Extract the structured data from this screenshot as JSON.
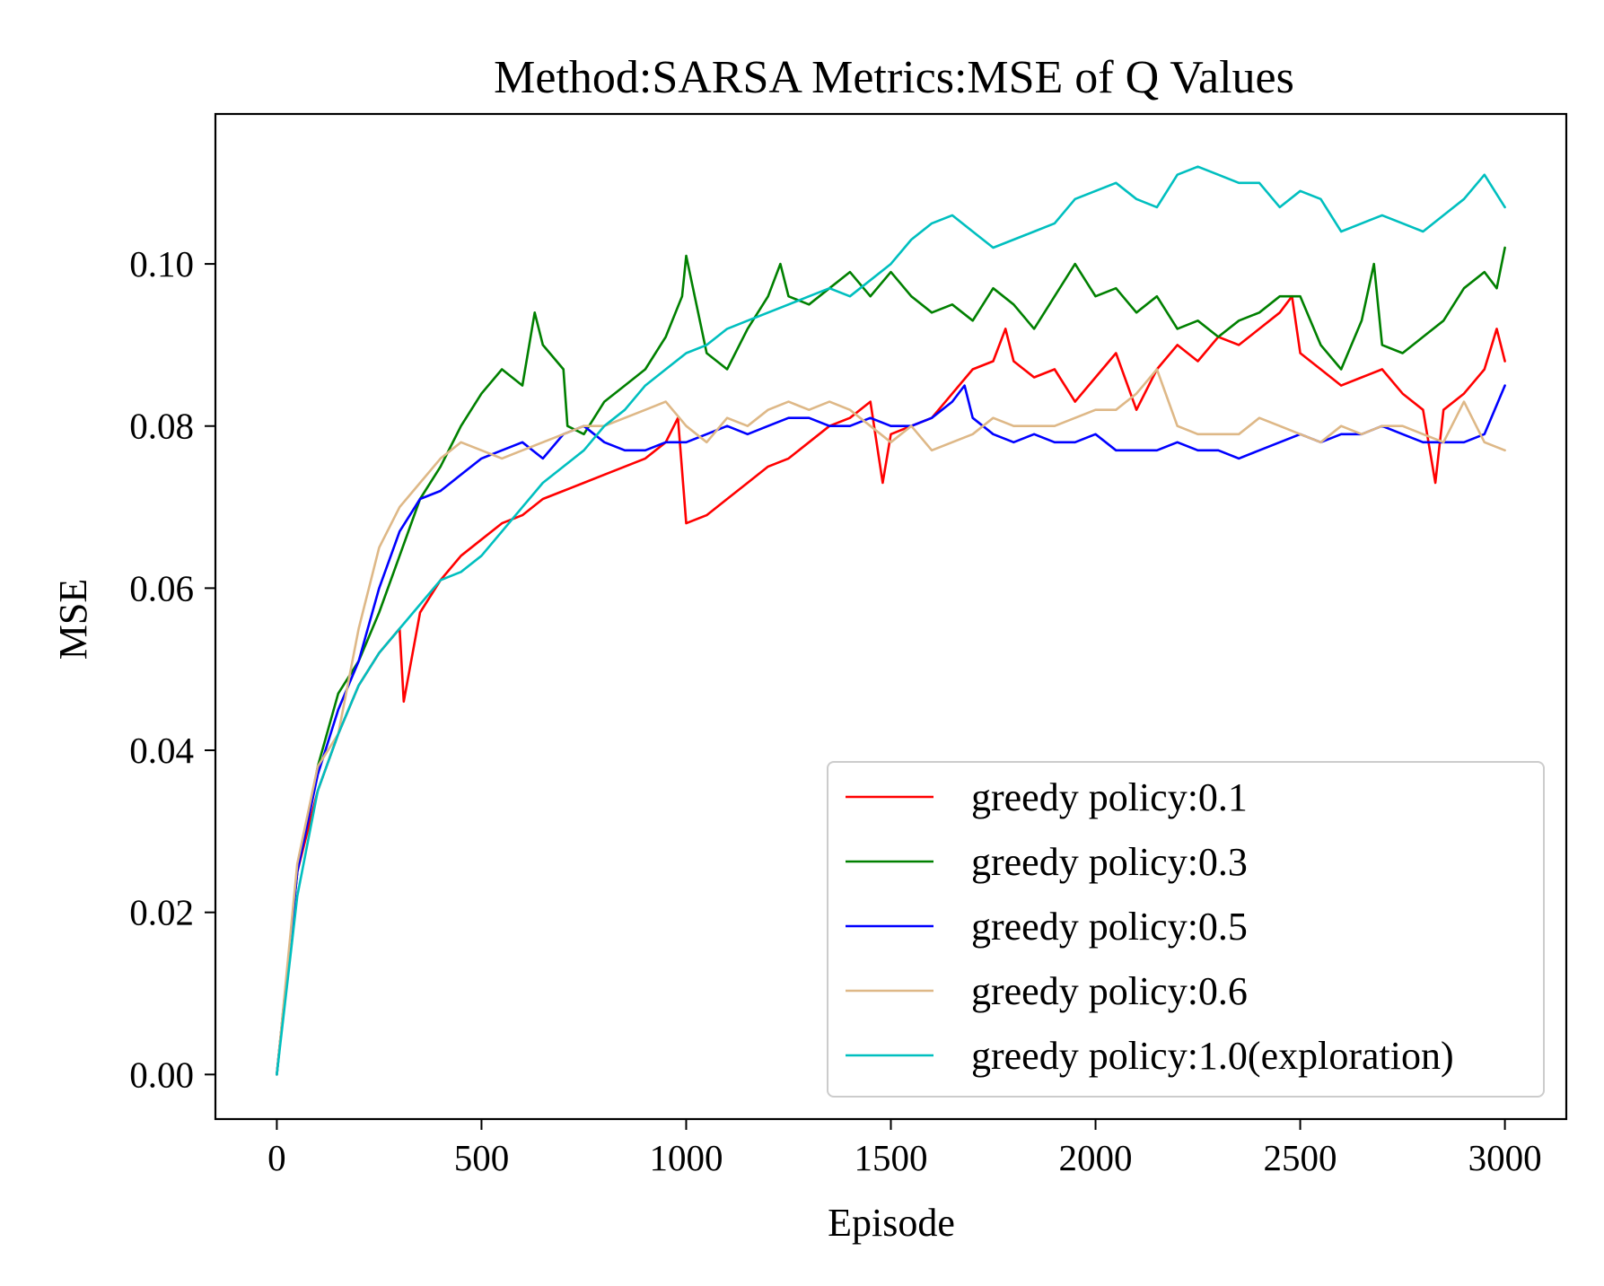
{
  "chart_data": {
    "type": "line",
    "title": "Method:SARSA   Metrics:MSE of Q Values",
    "xlabel": "Episode",
    "ylabel": "MSE",
    "xlim": [
      -150,
      3150
    ],
    "ylim": [
      -0.0055,
      0.1185
    ],
    "xticks": [
      0,
      500,
      1000,
      1500,
      2000,
      2500,
      3000
    ],
    "xtick_labels": [
      "0",
      "500",
      "1000",
      "1500",
      "2000",
      "2500",
      "3000"
    ],
    "yticks": [
      0.0,
      0.02,
      0.04,
      0.06,
      0.08,
      0.1
    ],
    "ytick_labels": [
      "0.00",
      "0.02",
      "0.04",
      "0.06",
      "0.08",
      "0.10"
    ],
    "grid": false,
    "legend_position": "lower-right",
    "series": [
      {
        "name": "greedy policy:0.1",
        "color": "#ff0000",
        "x": [
          0,
          50,
          100,
          150,
          200,
          250,
          300,
          310,
          350,
          400,
          450,
          500,
          550,
          600,
          650,
          700,
          750,
          800,
          850,
          900,
          950,
          980,
          1000,
          1050,
          1100,
          1150,
          1200,
          1250,
          1300,
          1350,
          1400,
          1450,
          1480,
          1500,
          1550,
          1600,
          1650,
          1700,
          1750,
          1780,
          1800,
          1850,
          1900,
          1950,
          2000,
          2050,
          2100,
          2150,
          2200,
          2250,
          2300,
          2350,
          2400,
          2450,
          2480,
          2500,
          2550,
          2600,
          2650,
          2700,
          2750,
          2800,
          2830,
          2850,
          2900,
          2950,
          2980,
          3000
        ],
        "y": [
          0.0,
          0.025,
          0.035,
          0.042,
          0.048,
          0.052,
          0.055,
          0.046,
          0.057,
          0.061,
          0.064,
          0.066,
          0.068,
          0.069,
          0.071,
          0.072,
          0.073,
          0.074,
          0.075,
          0.076,
          0.078,
          0.081,
          0.068,
          0.069,
          0.071,
          0.073,
          0.075,
          0.076,
          0.078,
          0.08,
          0.081,
          0.083,
          0.073,
          0.079,
          0.08,
          0.081,
          0.084,
          0.087,
          0.088,
          0.092,
          0.088,
          0.086,
          0.087,
          0.083,
          0.086,
          0.089,
          0.082,
          0.087,
          0.09,
          0.088,
          0.091,
          0.09,
          0.092,
          0.094,
          0.096,
          0.089,
          0.087,
          0.085,
          0.086,
          0.087,
          0.084,
          0.082,
          0.073,
          0.082,
          0.084,
          0.087,
          0.092,
          0.088
        ]
      },
      {
        "name": "greedy policy:0.3",
        "color": "#008000",
        "x": [
          0,
          50,
          100,
          150,
          200,
          250,
          300,
          350,
          400,
          450,
          500,
          550,
          600,
          630,
          650,
          700,
          710,
          750,
          800,
          850,
          900,
          950,
          990,
          1000,
          1050,
          1100,
          1150,
          1200,
          1230,
          1250,
          1300,
          1350,
          1400,
          1450,
          1500,
          1550,
          1600,
          1650,
          1700,
          1750,
          1800,
          1850,
          1900,
          1950,
          2000,
          2050,
          2100,
          2150,
          2200,
          2250,
          2300,
          2350,
          2400,
          2450,
          2500,
          2550,
          2600,
          2650,
          2680,
          2700,
          2750,
          2800,
          2850,
          2900,
          2950,
          2980,
          3000
        ],
        "y": [
          0.0,
          0.025,
          0.038,
          0.047,
          0.051,
          0.057,
          0.064,
          0.071,
          0.075,
          0.08,
          0.084,
          0.087,
          0.085,
          0.094,
          0.09,
          0.087,
          0.08,
          0.079,
          0.083,
          0.085,
          0.087,
          0.091,
          0.096,
          0.101,
          0.089,
          0.087,
          0.092,
          0.096,
          0.1,
          0.096,
          0.095,
          0.097,
          0.099,
          0.096,
          0.099,
          0.096,
          0.094,
          0.095,
          0.093,
          0.097,
          0.095,
          0.092,
          0.096,
          0.1,
          0.096,
          0.097,
          0.094,
          0.096,
          0.092,
          0.093,
          0.091,
          0.093,
          0.094,
          0.096,
          0.096,
          0.09,
          0.087,
          0.093,
          0.1,
          0.09,
          0.089,
          0.091,
          0.093,
          0.097,
          0.099,
          0.097,
          0.102
        ]
      },
      {
        "name": "greedy policy:0.5",
        "color": "#0000ff",
        "x": [
          0,
          50,
          100,
          150,
          200,
          250,
          300,
          350,
          400,
          450,
          500,
          550,
          600,
          650,
          700,
          750,
          800,
          850,
          900,
          950,
          1000,
          1050,
          1100,
          1150,
          1200,
          1250,
          1300,
          1350,
          1400,
          1450,
          1500,
          1550,
          1600,
          1650,
          1680,
          1700,
          1750,
          1800,
          1850,
          1900,
          1950,
          2000,
          2050,
          2100,
          2150,
          2200,
          2250,
          2300,
          2350,
          2400,
          2450,
          2500,
          2550,
          2600,
          2650,
          2700,
          2750,
          2800,
          2850,
          2900,
          2950,
          3000
        ],
        "y": [
          0.0,
          0.025,
          0.037,
          0.045,
          0.051,
          0.06,
          0.067,
          0.071,
          0.072,
          0.074,
          0.076,
          0.077,
          0.078,
          0.076,
          0.079,
          0.08,
          0.078,
          0.077,
          0.077,
          0.078,
          0.078,
          0.079,
          0.08,
          0.079,
          0.08,
          0.081,
          0.081,
          0.08,
          0.08,
          0.081,
          0.08,
          0.08,
          0.081,
          0.083,
          0.085,
          0.081,
          0.079,
          0.078,
          0.079,
          0.078,
          0.078,
          0.079,
          0.077,
          0.077,
          0.077,
          0.078,
          0.077,
          0.077,
          0.076,
          0.077,
          0.078,
          0.079,
          0.078,
          0.079,
          0.079,
          0.08,
          0.079,
          0.078,
          0.078,
          0.078,
          0.079,
          0.085
        ]
      },
      {
        "name": "greedy policy:0.6",
        "color": "#deb887",
        "x": [
          0,
          50,
          100,
          150,
          200,
          250,
          300,
          350,
          400,
          450,
          500,
          550,
          600,
          650,
          700,
          750,
          800,
          850,
          900,
          950,
          1000,
          1050,
          1100,
          1150,
          1200,
          1250,
          1300,
          1350,
          1400,
          1450,
          1500,
          1550,
          1600,
          1650,
          1700,
          1750,
          1800,
          1850,
          1900,
          1950,
          2000,
          2050,
          2100,
          2150,
          2200,
          2250,
          2300,
          2350,
          2400,
          2450,
          2500,
          2550,
          2600,
          2650,
          2700,
          2750,
          2800,
          2850,
          2900,
          2950,
          3000
        ],
        "y": [
          0.0,
          0.026,
          0.038,
          0.042,
          0.055,
          0.065,
          0.07,
          0.073,
          0.076,
          0.078,
          0.077,
          0.076,
          0.077,
          0.078,
          0.079,
          0.08,
          0.08,
          0.081,
          0.082,
          0.083,
          0.08,
          0.078,
          0.081,
          0.08,
          0.082,
          0.083,
          0.082,
          0.083,
          0.082,
          0.08,
          0.078,
          0.08,
          0.077,
          0.078,
          0.079,
          0.081,
          0.08,
          0.08,
          0.08,
          0.081,
          0.082,
          0.082,
          0.084,
          0.087,
          0.08,
          0.079,
          0.079,
          0.079,
          0.081,
          0.08,
          0.079,
          0.078,
          0.08,
          0.079,
          0.08,
          0.08,
          0.079,
          0.078,
          0.083,
          0.078,
          0.077
        ]
      },
      {
        "name": "greedy policy:1.0(exploration)",
        "color": "#00bfbf",
        "x": [
          0,
          50,
          100,
          150,
          200,
          250,
          300,
          350,
          400,
          450,
          500,
          550,
          600,
          650,
          700,
          750,
          800,
          850,
          900,
          950,
          1000,
          1050,
          1100,
          1150,
          1200,
          1250,
          1300,
          1350,
          1400,
          1450,
          1500,
          1550,
          1600,
          1650,
          1700,
          1750,
          1800,
          1850,
          1900,
          1950,
          2000,
          2050,
          2100,
          2150,
          2200,
          2250,
          2300,
          2350,
          2400,
          2450,
          2500,
          2550,
          2600,
          2650,
          2700,
          2750,
          2800,
          2850,
          2900,
          2950,
          3000
        ],
        "y": [
          0.0,
          0.022,
          0.035,
          0.042,
          0.048,
          0.052,
          0.055,
          0.058,
          0.061,
          0.062,
          0.064,
          0.067,
          0.07,
          0.073,
          0.075,
          0.077,
          0.08,
          0.082,
          0.085,
          0.087,
          0.089,
          0.09,
          0.092,
          0.093,
          0.094,
          0.095,
          0.096,
          0.097,
          0.096,
          0.098,
          0.1,
          0.103,
          0.105,
          0.106,
          0.104,
          0.102,
          0.103,
          0.104,
          0.105,
          0.108,
          0.109,
          0.11,
          0.108,
          0.107,
          0.111,
          0.112,
          0.111,
          0.11,
          0.11,
          0.107,
          0.109,
          0.108,
          0.104,
          0.105,
          0.106,
          0.105,
          0.104,
          0.106,
          0.108,
          0.111,
          0.107
        ]
      }
    ]
  }
}
